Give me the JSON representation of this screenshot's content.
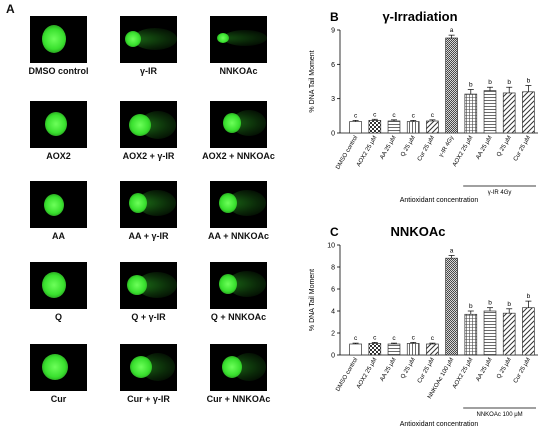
{
  "panel_a": {
    "letter": "A",
    "labels": [
      "DMSO control",
      "γ-IR",
      "NNKOAc",
      "AOX2",
      "AOX2 + γ-IR",
      "AOX2 + NNKOAc",
      "AA",
      "AA + γ-IR",
      "AA + NNKOAc",
      "Q",
      "Q + γ-IR",
      "Q + NNKOAc",
      "Cur",
      "Cur + γ-IR",
      "Cur + NNKOAc"
    ]
  },
  "chart_data": [
    {
      "panel": "B",
      "type": "bar",
      "title": "γ-Irradiation",
      "ylabel": "% DNA Tail Moment",
      "xlabel": "Antioxidant concentration",
      "ylim": [
        0,
        9
      ],
      "yticks": [
        0,
        3,
        6,
        9
      ],
      "categories": [
        "DMSO control",
        "AOX2 25 μM",
        "AA 25 μM",
        "Q 25 μM",
        "Cur 25 μM",
        "γ-IR 4Gy",
        "AOX2 25 μM",
        "AA 25 μM",
        "Q 25 μM",
        "Cur 25 μM"
      ],
      "values": [
        1.0,
        1.1,
        1.05,
        1.0,
        1.05,
        8.3,
        3.4,
        3.7,
        3.5,
        3.6
      ],
      "errors": [
        0.1,
        0.1,
        0.1,
        0.1,
        0.1,
        0.25,
        0.4,
        0.3,
        0.5,
        0.55
      ],
      "letters": [
        "c",
        "c",
        "c",
        "c",
        "c",
        "a",
        "b",
        "b",
        "b",
        "b"
      ],
      "patterns": [
        "white",
        "checker",
        "hlines",
        "vlines",
        "dlines",
        "dense",
        "grid",
        "hlines",
        "dlines",
        "dlines"
      ],
      "group_label": "γ-IR 4Gy"
    },
    {
      "panel": "C",
      "type": "bar",
      "title": "NNKOAc",
      "ylabel": "% DNA Tail Moment",
      "xlabel": "Antioxidant concentration",
      "ylim": [
        0,
        10
      ],
      "yticks": [
        0,
        2,
        4,
        6,
        8,
        10
      ],
      "categories": [
        "DMSO control",
        "AOX2 25 μM",
        "AA 25 μM",
        "Q 25 μM",
        "Cur 25 μM",
        "NNKOAc 100 μM",
        "AOX2 25 μM",
        "AA 25 μM",
        "Q 25 μM",
        "Cur 25 μM"
      ],
      "values": [
        1.0,
        1.05,
        1.0,
        1.05,
        1.0,
        8.8,
        3.7,
        4.0,
        3.8,
        4.3
      ],
      "errors": [
        0.08,
        0.1,
        0.08,
        0.1,
        0.08,
        0.25,
        0.3,
        0.3,
        0.4,
        0.6
      ],
      "letters": [
        "c",
        "c",
        "c",
        "c",
        "c",
        "a",
        "b",
        "b",
        "b",
        "b"
      ],
      "patterns": [
        "white",
        "checker",
        "hlines",
        "vlines",
        "dlines",
        "dense",
        "grid",
        "hlines",
        "dlines",
        "dlines"
      ],
      "group_label": "NNKOAc 100 μM"
    }
  ],
  "colors": {
    "comet_background": "#000000",
    "comet_green": "#39e02e",
    "bar_stroke": "#333333"
  }
}
